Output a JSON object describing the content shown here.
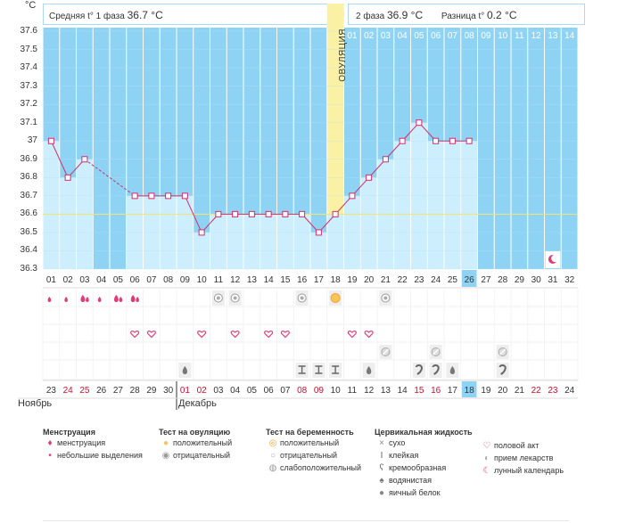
{
  "header": {
    "y_unit": "°C",
    "phase1_label": "Средняя t° 1 фаза",
    "phase1_value": "36.7 °C",
    "phase2_label": "2 фаза",
    "phase2_value": "36.9 °C",
    "diff_label": "Разница t°",
    "diff_value": "0.2 °C",
    "ovulation_label": "ОВУЛЯЦИЯ"
  },
  "chart_data": {
    "type": "area",
    "y_ticks": [
      "37.6",
      "37.5",
      "37.4",
      "37.3",
      "37.2",
      "37.1",
      "37",
      "36.9",
      "36.8",
      "36.7",
      "36.6",
      "36.5",
      "36.4",
      "36.3"
    ],
    "ylim": [
      36.3,
      37.6
    ],
    "cycle_days": [
      "01",
      "02",
      "03",
      "04",
      "05",
      "06",
      "07",
      "08",
      "09",
      "10",
      "11",
      "12",
      "13",
      "14",
      "15",
      "16",
      "17",
      "18",
      "19",
      "20",
      "21",
      "22",
      "23",
      "24",
      "25",
      "26",
      "27",
      "28",
      "29",
      "30",
      "31",
      "32"
    ],
    "post_ovulation_days": [
      "01",
      "02",
      "03",
      "04",
      "05",
      "06",
      "07",
      "08",
      "09",
      "10",
      "11",
      "12",
      "13",
      "14"
    ],
    "temperatures": [
      37.0,
      36.8,
      36.9,
      null,
      null,
      36.7,
      36.7,
      36.7,
      36.7,
      36.5,
      36.6,
      36.6,
      36.6,
      36.6,
      36.6,
      36.6,
      36.5,
      36.6,
      36.7,
      36.8,
      36.9,
      37.0,
      37.1,
      37.0,
      37.0,
      37.0,
      null,
      null,
      null,
      null,
      null,
      null
    ],
    "coverline": 36.6,
    "ovulation_day": 18,
    "current_day": 26,
    "calendar_dates": [
      "23",
      "24",
      "25",
      "26",
      "27",
      "28",
      "29",
      "30",
      "01",
      "02",
      "03",
      "04",
      "05",
      "06",
      "07",
      "08",
      "09",
      "10",
      "11",
      "12",
      "13",
      "14",
      "15",
      "16",
      "17",
      "18",
      "19",
      "20",
      "21",
      "22",
      "23",
      "24"
    ],
    "red_date_indices": [
      1,
      2,
      8,
      9,
      15,
      16,
      22,
      23,
      29,
      30
    ],
    "month_labels": [
      {
        "index": 0,
        "name": "Ноябрь"
      },
      {
        "index": 8,
        "name": "Декабрь"
      }
    ],
    "menstruation": {
      "heavy": [
        2,
        4,
        5
      ],
      "light": [
        0,
        1,
        3,
        5
      ]
    },
    "ovulation_tests": {
      "negative": [
        10,
        11,
        15,
        20
      ],
      "positive": [
        17
      ]
    },
    "sex": [
      5,
      6,
      9,
      11,
      13,
      14,
      18,
      19
    ],
    "pills": [
      20,
      23,
      27
    ],
    "cervical": {
      "watery": [
        8,
        19,
        24
      ],
      "sticky": [
        15,
        16,
        17
      ],
      "creamy": [
        22,
        23
      ],
      "creamy2": [
        27
      ]
    },
    "lunar_day": 30
  },
  "legend": {
    "groups": [
      {
        "title": "Менструация",
        "items": [
          {
            "icon": "heavy-drop-icon",
            "label": "менструация"
          },
          {
            "icon": "light-drop-icon",
            "label": "небольшие выделения"
          }
        ]
      },
      {
        "title": "Тест на овуляцию",
        "items": [
          {
            "icon": "positive-circle-icon",
            "label": "положительный"
          },
          {
            "icon": "negative-circle-icon",
            "label": "отрицательный"
          }
        ]
      },
      {
        "title": "Тест на беременность",
        "items": [
          {
            "icon": "preg-positive-icon",
            "label": "положительный"
          },
          {
            "icon": "preg-negative-icon",
            "label": "отрицательный"
          },
          {
            "icon": "preg-weak-icon",
            "label": "слабоположительный"
          }
        ]
      },
      {
        "title": "Цервикальная жидкость",
        "items": [
          {
            "icon": "dry-icon",
            "label": "сухо"
          },
          {
            "icon": "sticky-icon",
            "label": "клейкая"
          },
          {
            "icon": "creamy-icon",
            "label": "кремообразная"
          },
          {
            "icon": "watery-icon",
            "label": "водянистая"
          },
          {
            "icon": "eggwhite-icon",
            "label": "яичный белок"
          }
        ]
      },
      {
        "title": "",
        "items": [
          {
            "icon": "heart-icon",
            "label": "половой акт"
          },
          {
            "icon": "pill-icon",
            "label": "прием лекарств"
          },
          {
            "icon": "moon-icon",
            "label": "лунный календарь"
          }
        ]
      }
    ]
  }
}
